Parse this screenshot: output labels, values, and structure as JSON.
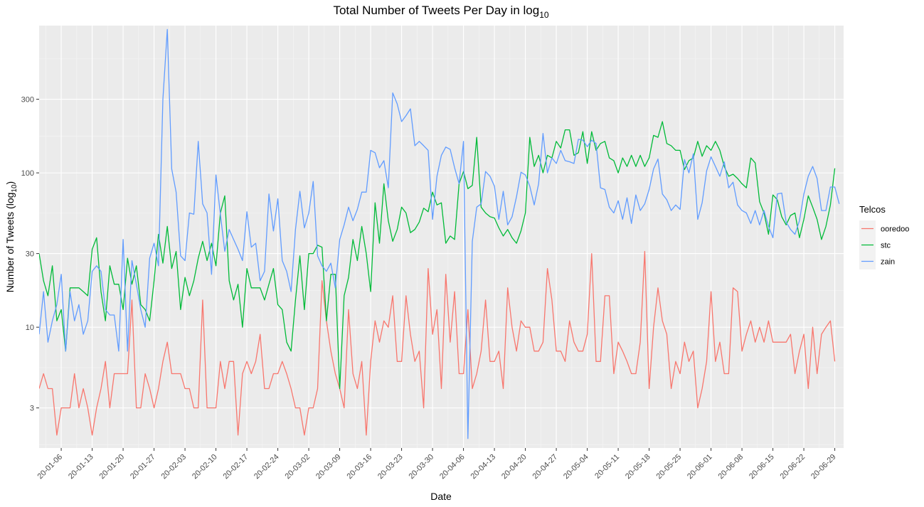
{
  "chart_data": {
    "type": "line",
    "title": "Total Number of Tweets Per Day in log",
    "title_subscript": "10",
    "xlabel": "Date",
    "ylabel": "Number of Tweets (log",
    "ylabel_subscript": "10",
    "ylabel_suffix": ")",
    "y_scale": "log10",
    "ylim": [
      1.65,
      900
    ],
    "y_ticks": [
      3,
      10,
      30,
      100,
      300
    ],
    "y_tick_labels": [
      "3",
      "10",
      "30",
      "100",
      "300"
    ],
    "xlim": [
      "2020-01-01",
      "2020-07-01"
    ],
    "x_ticks": [
      "2020-01-06",
      "2020-01-13",
      "2020-01-20",
      "2020-01-27",
      "2020-02-03",
      "2020-02-10",
      "2020-02-17",
      "2020-02-24",
      "2020-03-02",
      "2020-03-09",
      "2020-03-16",
      "2020-03-23",
      "2020-03-30",
      "2020-04-06",
      "2020-04-13",
      "2020-04-20",
      "2020-04-27",
      "2020-05-04",
      "2020-05-11",
      "2020-05-18",
      "2020-05-25",
      "2020-06-01",
      "2020-06-08",
      "2020-06-15",
      "2020-06-22",
      "2020-06-29"
    ],
    "x_tick_labels": [
      "20-01-06",
      "20-01-13",
      "20-01-20",
      "20-01-27",
      "20-02-03",
      "20-02-10",
      "20-02-17",
      "20-02-24",
      "20-03-02",
      "20-03-09",
      "20-03-16",
      "20-03-23",
      "20-03-30",
      "20-04-06",
      "20-04-13",
      "20-04-20",
      "20-04-27",
      "20-05-04",
      "20-05-11",
      "20-05-18",
      "20-05-25",
      "20-06-01",
      "20-06-08",
      "20-06-15",
      "20-06-22",
      "20-06-29"
    ],
    "x_start": "2020-01-01",
    "grid": true,
    "legend": {
      "title": "Telcos",
      "position": "right"
    },
    "series": [
      {
        "name": "ooredoo",
        "color": "#F8766D",
        "values": [
          4,
          5,
          4,
          4,
          2,
          3,
          3,
          3,
          5,
          3,
          4,
          3,
          2,
          3,
          4,
          6,
          3,
          5,
          5,
          5,
          5,
          15,
          3,
          3,
          5,
          4,
          3,
          4,
          6,
          8,
          5,
          5,
          5,
          4,
          4,
          3,
          3,
          15,
          3,
          3,
          3,
          6,
          4,
          6,
          6,
          2,
          5,
          6,
          5,
          6,
          9,
          4,
          4,
          5,
          5,
          6,
          5,
          4,
          3,
          3,
          2,
          3,
          3,
          4,
          20,
          11,
          7,
          5,
          4,
          3,
          13,
          5,
          4,
          6,
          2,
          6,
          11,
          8,
          11,
          10,
          16,
          6,
          6,
          16,
          9,
          6,
          7,
          3,
          24,
          9,
          13,
          4,
          22,
          8,
          17,
          5,
          5,
          13,
          4,
          5,
          7,
          15,
          6,
          6,
          7,
          4,
          18,
          10,
          7,
          11,
          10,
          10,
          7,
          7,
          8,
          24,
          15,
          7,
          7,
          6,
          11,
          8,
          7,
          7,
          9,
          30,
          6,
          6,
          16,
          16,
          5,
          8,
          7,
          6,
          5,
          5,
          8,
          31,
          4,
          10,
          18,
          11,
          9,
          4,
          6,
          5,
          8,
          6,
          7,
          3,
          4,
          6,
          17,
          6,
          8,
          5,
          5,
          18,
          17,
          7,
          9,
          11,
          8,
          10,
          8,
          11,
          8,
          8,
          8,
          8,
          9,
          5,
          7,
          9,
          4,
          10,
          5,
          9,
          10,
          11,
          6
        ]
      },
      {
        "name": "stc",
        "color": "#00BA38",
        "values": [
          30,
          20,
          16,
          25,
          11,
          13,
          7,
          18,
          18,
          18,
          17,
          16,
          32,
          38,
          17,
          11,
          25,
          19,
          19,
          13,
          28,
          19,
          25,
          14,
          13,
          11,
          20,
          40,
          26,
          45,
          24,
          31,
          13,
          21,
          16,
          20,
          28,
          36,
          27,
          35,
          25,
          55,
          71,
          20,
          15,
          19,
          10,
          24,
          18,
          18,
          18,
          15,
          19,
          24,
          14,
          13,
          8,
          7,
          15,
          29,
          13,
          30,
          30,
          34,
          33,
          11,
          22,
          22,
          4,
          16,
          21,
          37,
          27,
          45,
          30,
          17,
          64,
          35,
          85,
          49,
          36,
          43,
          60,
          55,
          41,
          43,
          48,
          59,
          56,
          75,
          62,
          64,
          35,
          39,
          37,
          85,
          102,
          79,
          83,
          170,
          60,
          55,
          52,
          51,
          44,
          39,
          43,
          38,
          35,
          42,
          55,
          170,
          110,
          130,
          100,
          130,
          125,
          160,
          145,
          190,
          190,
          130,
          135,
          185,
          115,
          185,
          140,
          155,
          160,
          125,
          120,
          100,
          125,
          110,
          130,
          110,
          130,
          110,
          125,
          175,
          170,
          215,
          155,
          150,
          140,
          140,
          105,
          120,
          125,
          160,
          128,
          150,
          140,
          160,
          140,
          110,
          95,
          98,
          92,
          85,
          80,
          125,
          116,
          65,
          55,
          40,
          72,
          67,
          52,
          46,
          53,
          55,
          38,
          50,
          71,
          60,
          50,
          37,
          45,
          62,
          107
        ]
      },
      {
        "name": "zain",
        "color": "#619CFF",
        "values": [
          9,
          17,
          8,
          11,
          14,
          22,
          7,
          17,
          11,
          14,
          9,
          11,
          23,
          25,
          23,
          13,
          12,
          12,
          7,
          37,
          7,
          27,
          19,
          13,
          10,
          28,
          35,
          25,
          300,
          850,
          106,
          75,
          29,
          27,
          55,
          54,
          160,
          63,
          55,
          22,
          97,
          54,
          31,
          43,
          37,
          32,
          27,
          56,
          33,
          35,
          20,
          23,
          73,
          42,
          68,
          27,
          23,
          17,
          43,
          76,
          44,
          55,
          88,
          29,
          25,
          23,
          26,
          18,
          37,
          46,
          60,
          49,
          58,
          75,
          75,
          140,
          135,
          108,
          120,
          80,
          330,
          280,
          215,
          235,
          260,
          150,
          160,
          150,
          140,
          50,
          95,
          130,
          147,
          142,
          108,
          85,
          160,
          1.9,
          36,
          60,
          63,
          102,
          95,
          82,
          50,
          76,
          46,
          52,
          70,
          101,
          97,
          82,
          62,
          85,
          180,
          100,
          125,
          115,
          140,
          120,
          118,
          115,
          165,
          163,
          148,
          163,
          155,
          80,
          78,
          60,
          55,
          66,
          50,
          69,
          47,
          72,
          57,
          63,
          78,
          106,
          123,
          73,
          67,
          57,
          62,
          58,
          122,
          100,
          133,
          50,
          64,
          103,
          127,
          110,
          95,
          118,
          80,
          87,
          62,
          57,
          55,
          47,
          57,
          46,
          57,
          45,
          38,
          73,
          74,
          48,
          43,
          40,
          49,
          73,
          95,
          110,
          92,
          57,
          57,
          81,
          81,
          63
        ]
      }
    ]
  }
}
